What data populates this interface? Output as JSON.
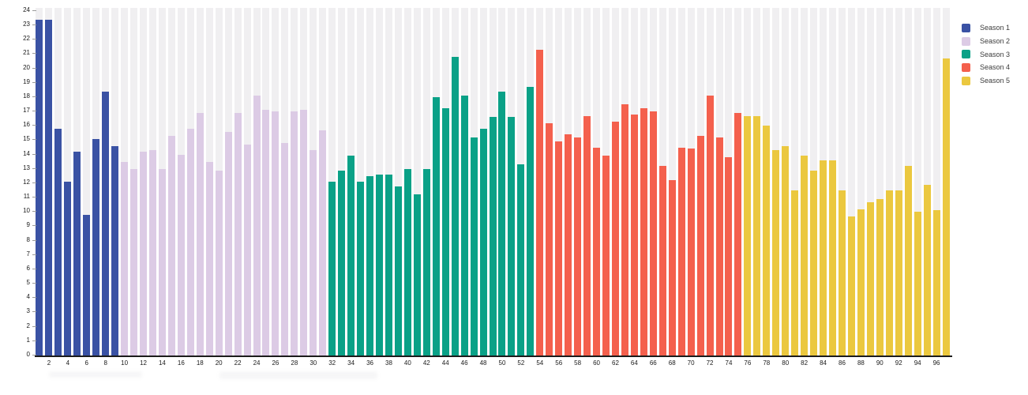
{
  "chart_data": {
    "type": "bar",
    "title": "",
    "x_unit": "episode",
    "episodes": [
      1,
      2,
      3,
      4,
      5,
      6,
      7,
      8,
      9,
      10,
      11,
      12,
      13,
      14,
      15,
      16,
      17,
      18,
      19,
      20,
      21,
      22,
      23,
      24,
      25,
      26,
      27,
      28,
      29,
      30,
      31,
      32,
      33,
      34,
      35,
      36,
      37,
      38,
      39,
      40,
      41,
      42,
      43,
      44,
      45,
      46,
      47,
      48,
      49,
      50,
      51,
      52,
      53,
      54,
      55,
      56,
      57,
      58,
      59,
      60,
      61,
      62,
      63,
      64,
      65,
      66,
      67,
      68,
      69,
      70,
      71,
      72,
      73,
      74,
      75,
      76,
      77,
      78,
      79,
      80,
      81,
      82,
      83,
      84,
      85,
      86,
      87,
      88,
      89,
      90,
      91,
      92,
      93,
      94,
      95,
      96,
      97
    ],
    "values": [
      23.4,
      23.4,
      15.8,
      12.1,
      14.2,
      9.8,
      15.1,
      18.4,
      14.6,
      13.5,
      13.0,
      14.2,
      14.3,
      13.0,
      15.3,
      14.0,
      15.8,
      16.9,
      13.5,
      12.9,
      15.6,
      16.9,
      14.7,
      18.1,
      17.1,
      17.0,
      14.8,
      17.0,
      17.1,
      14.3,
      15.7,
      12.1,
      12.9,
      13.9,
      12.1,
      12.5,
      12.6,
      12.6,
      11.8,
      13.0,
      11.2,
      13.0,
      18.0,
      17.2,
      20.8,
      18.1,
      15.2,
      15.8,
      16.6,
      18.4,
      16.6,
      13.3,
      18.7,
      21.3,
      16.2,
      14.9,
      15.4,
      15.2,
      16.7,
      14.5,
      13.9,
      16.3,
      17.5,
      16.8,
      17.2,
      17.0,
      13.2,
      12.2,
      14.5,
      14.4,
      15.3,
      18.1,
      15.2,
      13.8,
      16.9,
      16.7,
      16.7,
      16.0,
      14.3,
      14.6,
      11.5,
      13.9,
      12.9,
      13.6,
      13.6,
      11.5,
      9.7,
      10.2,
      10.7,
      10.9,
      11.5,
      11.5,
      13.2,
      10.0,
      11.9,
      10.1,
      20.7
    ],
    "seasons": [
      {
        "name": "Season 1",
        "start": 1,
        "end": 9,
        "color": "#3a52a4"
      },
      {
        "name": "Season 2",
        "start": 10,
        "end": 31,
        "color": "#dccbe5"
      },
      {
        "name": "Season 3",
        "start": 32,
        "end": 53,
        "color": "#0aa187"
      },
      {
        "name": "Season 4",
        "start": 54,
        "end": 75,
        "color": "#f4604d"
      },
      {
        "name": "Season 5",
        "start": 76,
        "end": 97,
        "color": "#ebc83f"
      }
    ],
    "ylim": [
      0,
      24
    ],
    "grid": false,
    "background_stripes": true,
    "legend_position": "top-right"
  },
  "y_axis": {
    "ticks": [
      0,
      1,
      2,
      3,
      4,
      5,
      6,
      7,
      8,
      9,
      10,
      11,
      12,
      13,
      14,
      15,
      16,
      17,
      18,
      19,
      20,
      21,
      22,
      23,
      24
    ]
  },
  "x_axis": {
    "ticks": [
      2,
      4,
      6,
      8,
      10,
      12,
      14,
      16,
      18,
      20,
      22,
      24,
      26,
      28,
      30,
      32,
      34,
      36,
      38,
      40,
      42,
      44,
      46,
      48,
      50,
      52,
      54,
      56,
      58,
      60,
      62,
      64,
      66,
      68,
      70,
      72,
      74,
      76,
      78,
      80,
      82,
      84,
      86,
      88,
      90,
      92,
      94,
      96
    ]
  },
  "legend": {
    "items": [
      {
        "label": "Season 1",
        "color": "#3a52a4"
      },
      {
        "label": "Season 2",
        "color": "#dccbe5"
      },
      {
        "label": "Season 3",
        "color": "#0aa187"
      },
      {
        "label": "Season 4",
        "color": "#f4604d"
      },
      {
        "label": "Season 5",
        "color": "#ebc83f"
      }
    ]
  },
  "colors": {
    "stripe": "#f0eff1",
    "axis_line": "#1c1c1c",
    "tick_text": "#1a1a1a",
    "legend_text": "#3c3c3c",
    "background": "#ffffff"
  }
}
